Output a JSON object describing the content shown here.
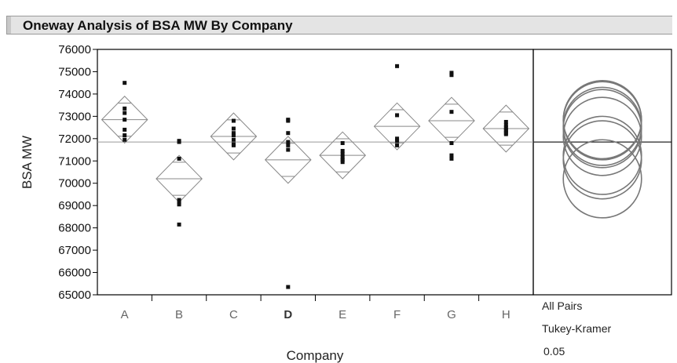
{
  "title": "Oneway Analysis of BSA MW By Company",
  "chart_data": {
    "type": "scatter",
    "subtype": "oneway-means-diamonds",
    "title": "Oneway Analysis of BSA MW By Company",
    "xlabel": "Company",
    "ylabel": "BSA MW",
    "ylim": [
      65000,
      76000
    ],
    "yticks": [
      65000,
      66000,
      67000,
      68000,
      69000,
      70000,
      71000,
      72000,
      73000,
      74000,
      75000,
      76000
    ],
    "grand_mean": 71850,
    "categories": [
      "A",
      "B",
      "C",
      "D",
      "E",
      "F",
      "G",
      "H"
    ],
    "groups": [
      {
        "name": "A",
        "mean": 72850,
        "lower": 71800,
        "upper": 73900,
        "points": [
          74500,
          73350,
          73150,
          72850,
          72400,
          72150,
          71950
        ]
      },
      {
        "name": "B",
        "mean": 70200,
        "lower": 69150,
        "upper": 71250,
        "points": [
          71900,
          71850,
          71100,
          69250,
          69150,
          69050,
          68150
        ]
      },
      {
        "name": "C",
        "mean": 72100,
        "lower": 71050,
        "upper": 73150,
        "points": [
          72800,
          72450,
          72250,
          72150,
          71950,
          71750,
          71700
        ]
      },
      {
        "name": "D",
        "mean": 71050,
        "lower": 70000,
        "upper": 72100,
        "points": [
          72850,
          72800,
          72250,
          71850,
          71700,
          71500,
          65350
        ]
      },
      {
        "name": "E",
        "mean": 71250,
        "lower": 70200,
        "upper": 72300,
        "points": [
          71800,
          71450,
          71300,
          71150,
          71050,
          70950
        ]
      },
      {
        "name": "F",
        "mean": 72550,
        "lower": 71500,
        "upper": 73600,
        "points": [
          75250,
          73050,
          72000,
          71900,
          71700
        ]
      },
      {
        "name": "G",
        "mean": 72800,
        "lower": 71750,
        "upper": 73850,
        "points": [
          74950,
          74850,
          73200,
          71800,
          71250,
          71100
        ]
      },
      {
        "name": "H",
        "mean": 72450,
        "lower": 71400,
        "upper": 73500,
        "points": [
          72750,
          72600,
          72500,
          72400,
          72350,
          72250,
          72200
        ]
      }
    ],
    "comparison_circles": {
      "method_label": "All Pairs",
      "test_label": "Tukey-Kramer",
      "alpha_label": "0.05",
      "circles": [
        {
          "group": "A",
          "center": 72850
        },
        {
          "group": "B",
          "center": 70200
        },
        {
          "group": "C",
          "center": 72100
        },
        {
          "group": "D",
          "center": 71050
        },
        {
          "group": "E",
          "center": 71250
        },
        {
          "group": "F",
          "center": 72550
        },
        {
          "group": "G",
          "center": 72800
        },
        {
          "group": "H",
          "center": 72450
        }
      ],
      "radius": 1750
    },
    "highlighted_category": "D",
    "grid": false
  }
}
